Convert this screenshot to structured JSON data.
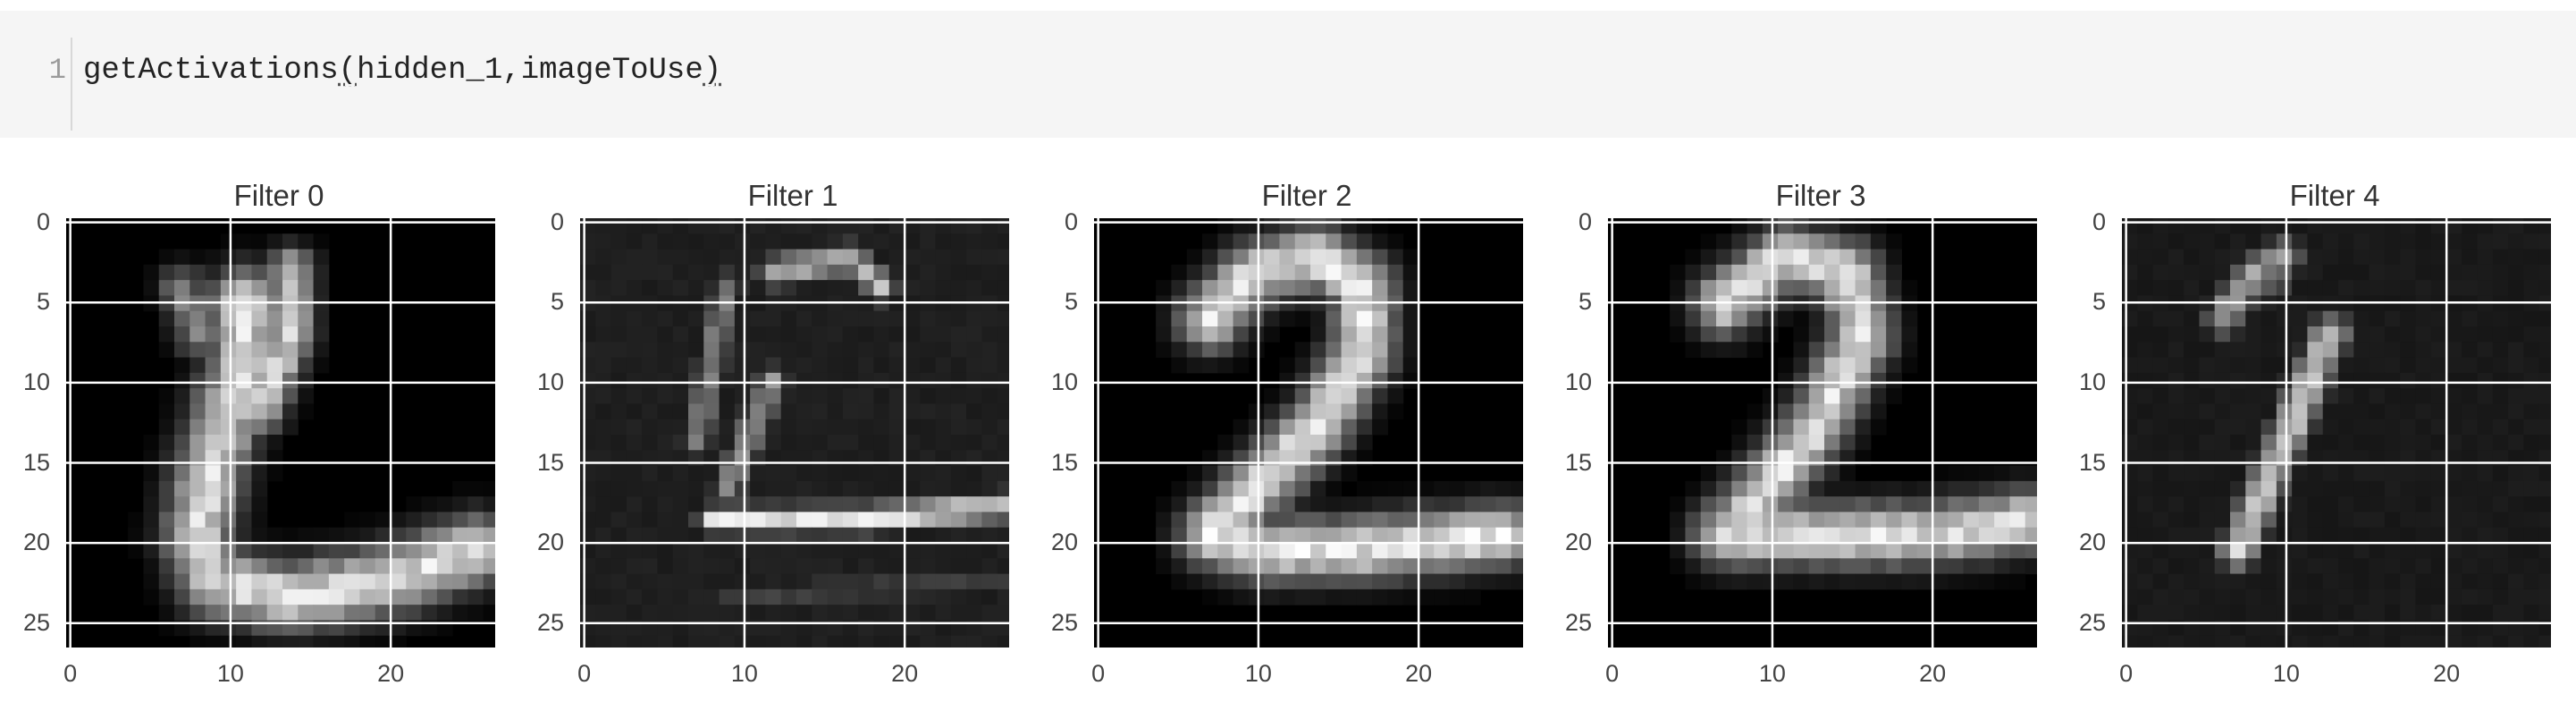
{
  "code_cell": {
    "line_number": "1",
    "function_name": "getActivations",
    "open_paren": "(",
    "arguments": "hidden_1,imageToUse",
    "close_paren": ")"
  },
  "theme": {
    "cell_background": "#f5f5f5",
    "grid_color": "#ffffff",
    "colormap": "gray"
  },
  "chart_data": [
    {
      "type": "heatmap",
      "title": "Filter 0",
      "x_ticks": [
        "0",
        "10",
        "20"
      ],
      "y_ticks": [
        "0",
        "5",
        "10",
        "15",
        "20",
        "25"
      ],
      "xlim": [
        0,
        27
      ],
      "ylim": [
        27,
        0
      ],
      "grid": true,
      "size": [
        28,
        28
      ]
    },
    {
      "type": "heatmap",
      "title": "Filter 1",
      "x_ticks": [
        "0",
        "10",
        "20"
      ],
      "y_ticks": [
        "0",
        "5",
        "10",
        "15",
        "20",
        "25"
      ],
      "xlim": [
        0,
        27
      ],
      "ylim": [
        27,
        0
      ],
      "grid": true,
      "size": [
        28,
        28
      ]
    },
    {
      "type": "heatmap",
      "title": "Filter 2",
      "x_ticks": [
        "0",
        "10",
        "20"
      ],
      "y_ticks": [
        "0",
        "5",
        "10",
        "15",
        "20",
        "25"
      ],
      "xlim": [
        0,
        27
      ],
      "ylim": [
        27,
        0
      ],
      "grid": true,
      "size": [
        28,
        28
      ]
    },
    {
      "type": "heatmap",
      "title": "Filter 3",
      "x_ticks": [
        "0",
        "10",
        "20"
      ],
      "y_ticks": [
        "0",
        "5",
        "10",
        "15",
        "20",
        "25"
      ],
      "xlim": [
        0,
        27
      ],
      "ylim": [
        27,
        0
      ],
      "grid": true,
      "size": [
        28,
        28
      ]
    },
    {
      "type": "heatmap",
      "title": "Filter 4",
      "x_ticks": [
        "0",
        "10",
        "20"
      ],
      "y_ticks": [
        "0",
        "5",
        "10",
        "15",
        "20",
        "25"
      ],
      "xlim": [
        0,
        27
      ],
      "ylim": [
        27,
        0
      ],
      "grid": true,
      "size": [
        28,
        28
      ]
    }
  ]
}
